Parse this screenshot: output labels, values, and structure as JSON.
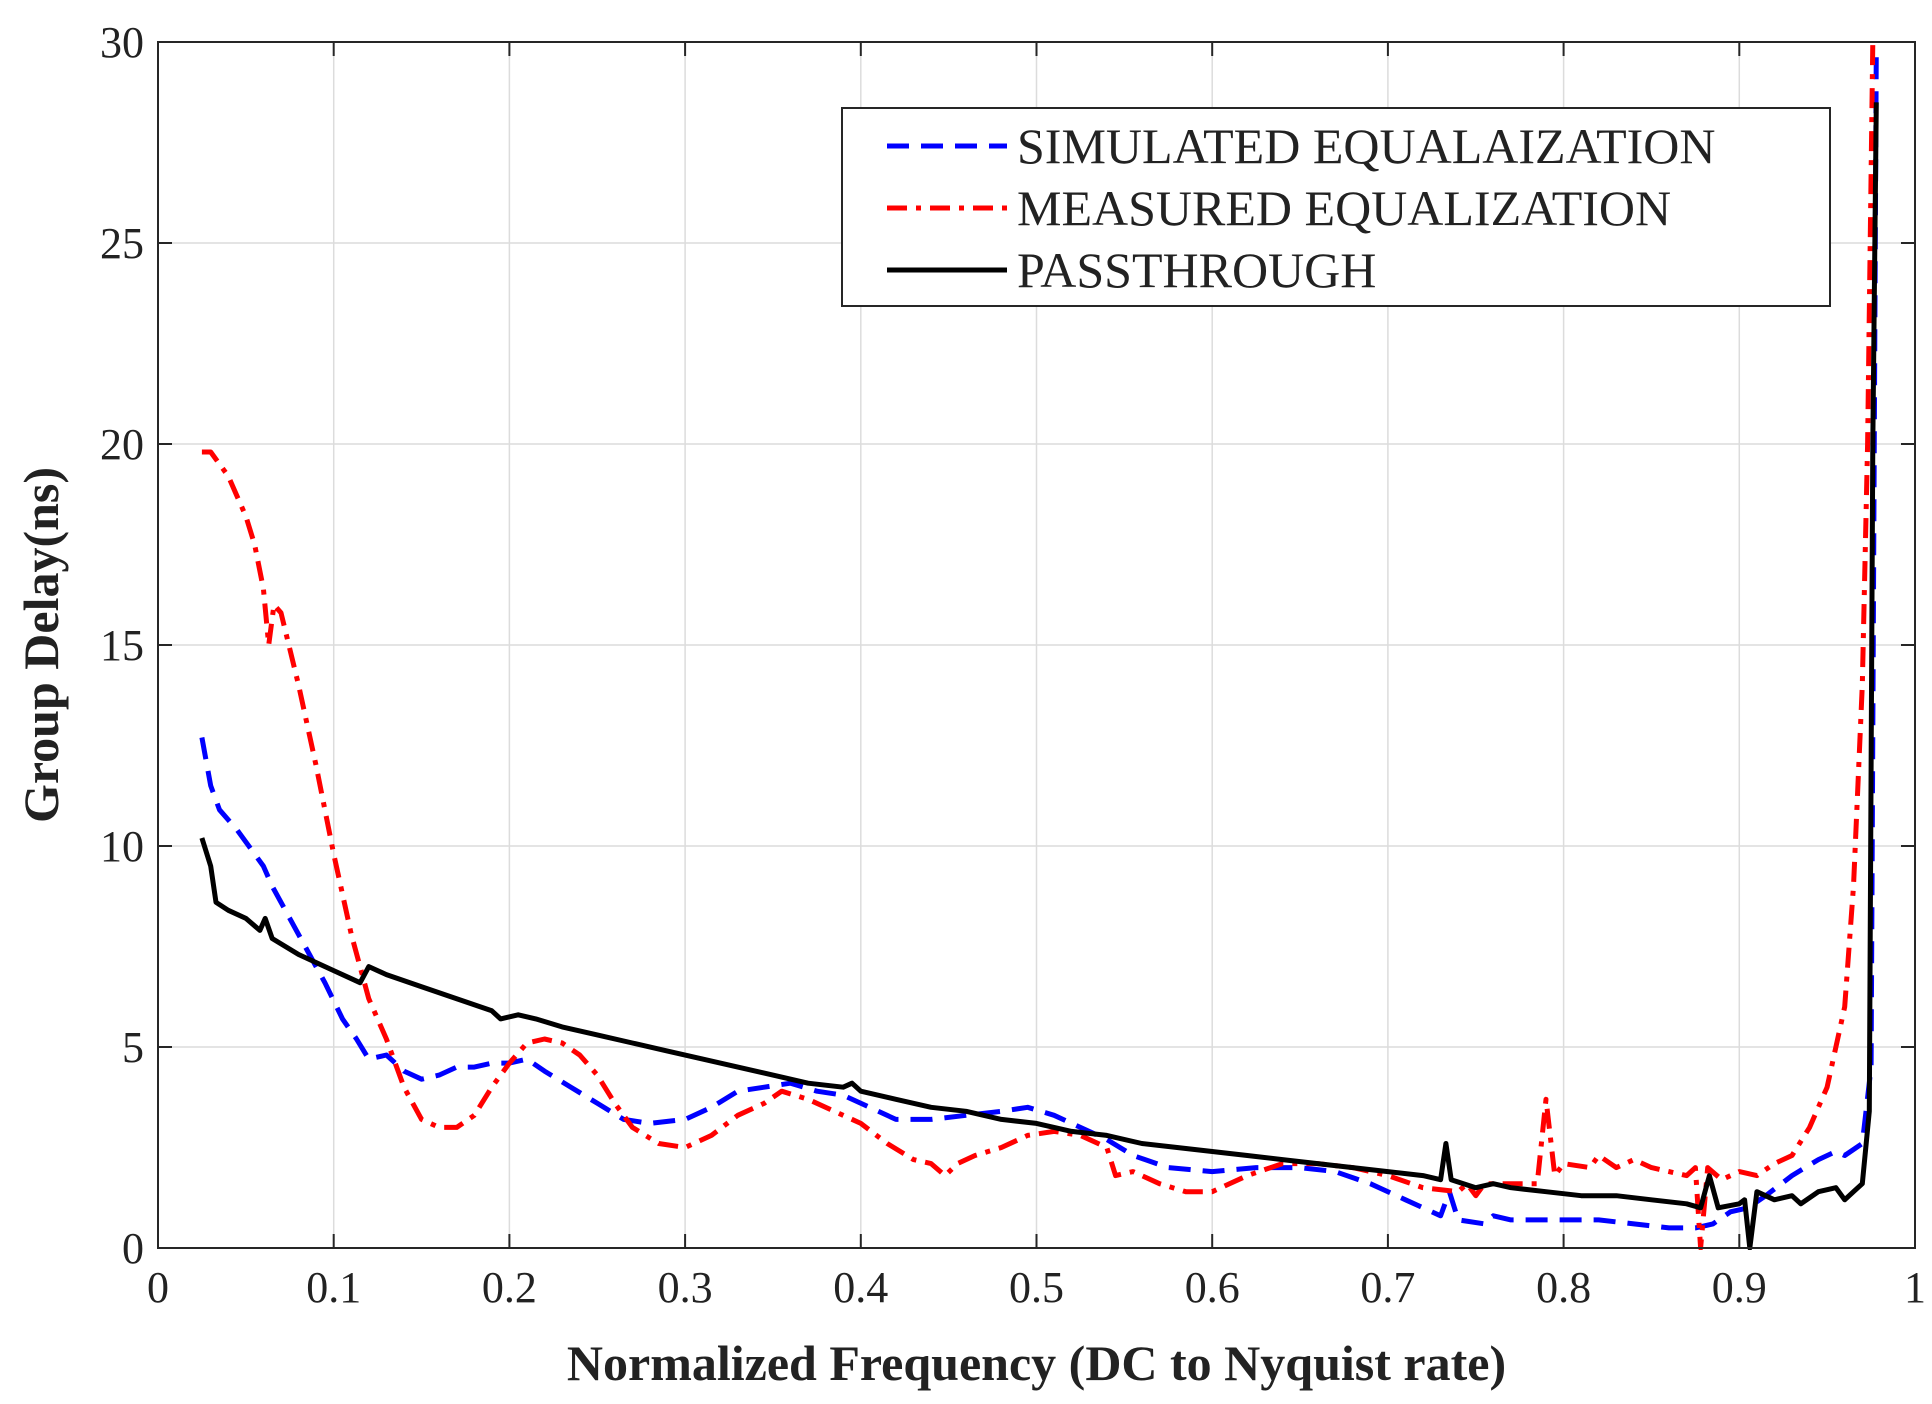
{
  "chart_data": {
    "type": "line",
    "title": "",
    "xlabel": "Normalized Frequency (DC to Nyquist rate)",
    "ylabel": "Group Delay(ns)",
    "xlim": [
      0,
      1
    ],
    "ylim": [
      0,
      30
    ],
    "grid": true,
    "legend_position": "top-right",
    "x_ticks": [
      0,
      0.1,
      0.2,
      0.3,
      0.4,
      0.5,
      0.6,
      0.7,
      0.8,
      0.9,
      1
    ],
    "x_tick_labels": [
      "0",
      "0.1",
      "0.2",
      "0.3",
      "0.4",
      "0.5",
      "0.6",
      "0.7",
      "0.8",
      "0.9",
      "1"
    ],
    "y_ticks": [
      0,
      5,
      10,
      15,
      20,
      25,
      30
    ],
    "y_tick_labels": [
      "0",
      "5",
      "10",
      "15",
      "20",
      "25",
      "30"
    ],
    "series": [
      {
        "name": "SIMULATED EQUALAIZATION",
        "color": "#0000ff",
        "style": "dashed",
        "points": [
          [
            0.025,
            12.7
          ],
          [
            0.03,
            11.5
          ],
          [
            0.035,
            10.9
          ],
          [
            0.045,
            10.4
          ],
          [
            0.055,
            9.8
          ],
          [
            0.06,
            9.5
          ],
          [
            0.065,
            9.0
          ],
          [
            0.075,
            8.2
          ],
          [
            0.085,
            7.4
          ],
          [
            0.095,
            6.6
          ],
          [
            0.105,
            5.7
          ],
          [
            0.113,
            5.2
          ],
          [
            0.12,
            4.7
          ],
          [
            0.13,
            4.8
          ],
          [
            0.14,
            4.4
          ],
          [
            0.15,
            4.2
          ],
          [
            0.16,
            4.3
          ],
          [
            0.17,
            4.5
          ],
          [
            0.18,
            4.5
          ],
          [
            0.19,
            4.6
          ],
          [
            0.2,
            4.6
          ],
          [
            0.21,
            4.7
          ],
          [
            0.22,
            4.4
          ],
          [
            0.235,
            4.0
          ],
          [
            0.25,
            3.6
          ],
          [
            0.265,
            3.2
          ],
          [
            0.28,
            3.1
          ],
          [
            0.3,
            3.2
          ],
          [
            0.315,
            3.5
          ],
          [
            0.33,
            3.9
          ],
          [
            0.345,
            4.0
          ],
          [
            0.36,
            4.1
          ],
          [
            0.375,
            3.9
          ],
          [
            0.39,
            3.8
          ],
          [
            0.405,
            3.5
          ],
          [
            0.42,
            3.2
          ],
          [
            0.44,
            3.2
          ],
          [
            0.46,
            3.3
          ],
          [
            0.48,
            3.4
          ],
          [
            0.495,
            3.5
          ],
          [
            0.51,
            3.3
          ],
          [
            0.525,
            3.0
          ],
          [
            0.54,
            2.7
          ],
          [
            0.555,
            2.3
          ],
          [
            0.575,
            2.0
          ],
          [
            0.6,
            1.9
          ],
          [
            0.625,
            2.0
          ],
          [
            0.65,
            2.0
          ],
          [
            0.67,
            1.9
          ],
          [
            0.69,
            1.6
          ],
          [
            0.71,
            1.2
          ],
          [
            0.725,
            0.9
          ],
          [
            0.73,
            0.8
          ],
          [
            0.735,
            1.4
          ],
          [
            0.74,
            0.7
          ],
          [
            0.755,
            0.6
          ],
          [
            0.76,
            0.8
          ],
          [
            0.77,
            0.7
          ],
          [
            0.78,
            0.7
          ],
          [
            0.8,
            0.7
          ],
          [
            0.82,
            0.7
          ],
          [
            0.84,
            0.6
          ],
          [
            0.86,
            0.5
          ],
          [
            0.875,
            0.5
          ],
          [
            0.885,
            0.6
          ],
          [
            0.895,
            0.9
          ],
          [
            0.905,
            1.0
          ],
          [
            0.915,
            1.3
          ],
          [
            0.93,
            1.8
          ],
          [
            0.945,
            2.2
          ],
          [
            0.955,
            2.4
          ],
          [
            0.96,
            2.3
          ],
          [
            0.97,
            2.6
          ],
          [
            0.975,
            4.5
          ],
          [
            0.978,
            29.9
          ]
        ]
      },
      {
        "name": "MEASURED EQUALIZATION",
        "color": "#ff0000",
        "style": "dashdot",
        "points": [
          [
            0.025,
            19.8
          ],
          [
            0.03,
            19.8
          ],
          [
            0.04,
            19.2
          ],
          [
            0.05,
            18.2
          ],
          [
            0.055,
            17.5
          ],
          [
            0.06,
            16.4
          ],
          [
            0.063,
            15.0
          ],
          [
            0.066,
            16.0
          ],
          [
            0.07,
            15.8
          ],
          [
            0.08,
            14.0
          ],
          [
            0.09,
            12.0
          ],
          [
            0.1,
            9.8
          ],
          [
            0.11,
            7.8
          ],
          [
            0.12,
            6.2
          ],
          [
            0.13,
            5.2
          ],
          [
            0.14,
            4.0
          ],
          [
            0.15,
            3.2
          ],
          [
            0.16,
            3.0
          ],
          [
            0.17,
            3.0
          ],
          [
            0.18,
            3.3
          ],
          [
            0.19,
            4.0
          ],
          [
            0.2,
            4.6
          ],
          [
            0.21,
            5.1
          ],
          [
            0.22,
            5.2
          ],
          [
            0.23,
            5.1
          ],
          [
            0.24,
            4.8
          ],
          [
            0.25,
            4.3
          ],
          [
            0.26,
            3.6
          ],
          [
            0.27,
            3.0
          ],
          [
            0.285,
            2.6
          ],
          [
            0.3,
            2.5
          ],
          [
            0.315,
            2.8
          ],
          [
            0.33,
            3.3
          ],
          [
            0.345,
            3.6
          ],
          [
            0.355,
            3.9
          ],
          [
            0.37,
            3.7
          ],
          [
            0.385,
            3.4
          ],
          [
            0.4,
            3.1
          ],
          [
            0.415,
            2.6
          ],
          [
            0.43,
            2.2
          ],
          [
            0.44,
            2.1
          ],
          [
            0.448,
            1.8
          ],
          [
            0.455,
            2.1
          ],
          [
            0.465,
            2.3
          ],
          [
            0.48,
            2.5
          ],
          [
            0.495,
            2.8
          ],
          [
            0.51,
            2.9
          ],
          [
            0.525,
            2.8
          ],
          [
            0.54,
            2.5
          ],
          [
            0.545,
            1.8
          ],
          [
            0.555,
            1.9
          ],
          [
            0.57,
            1.6
          ],
          [
            0.585,
            1.4
          ],
          [
            0.6,
            1.4
          ],
          [
            0.62,
            1.8
          ],
          [
            0.64,
            2.1
          ],
          [
            0.66,
            2.1
          ],
          [
            0.68,
            2.0
          ],
          [
            0.7,
            1.8
          ],
          [
            0.72,
            1.5
          ],
          [
            0.74,
            1.4
          ],
          [
            0.745,
            1.6
          ],
          [
            0.75,
            1.3
          ],
          [
            0.755,
            1.6
          ],
          [
            0.77,
            1.6
          ],
          [
            0.785,
            1.6
          ],
          [
            0.79,
            3.7
          ],
          [
            0.795,
            1.8
          ],
          [
            0.8,
            2.1
          ],
          [
            0.815,
            2.0
          ],
          [
            0.82,
            2.3
          ],
          [
            0.83,
            2.0
          ],
          [
            0.84,
            2.2
          ],
          [
            0.85,
            2.0
          ],
          [
            0.86,
            1.9
          ],
          [
            0.87,
            1.8
          ],
          [
            0.875,
            2.0
          ],
          [
            0.878,
            0.0
          ],
          [
            0.882,
            2.0
          ],
          [
            0.89,
            1.7
          ],
          [
            0.9,
            1.9
          ],
          [
            0.91,
            1.8
          ],
          [
            0.92,
            2.1
          ],
          [
            0.93,
            2.3
          ],
          [
            0.94,
            3.0
          ],
          [
            0.95,
            4.0
          ],
          [
            0.96,
            6.0
          ],
          [
            0.965,
            9.0
          ],
          [
            0.97,
            14.0
          ],
          [
            0.973,
            20.0
          ],
          [
            0.976,
            30.0
          ]
        ]
      },
      {
        "name": "PASSTHROUGH",
        "color": "#000000",
        "style": "solid",
        "points": [
          [
            0.025,
            10.2
          ],
          [
            0.03,
            9.5
          ],
          [
            0.033,
            8.6
          ],
          [
            0.04,
            8.4
          ],
          [
            0.05,
            8.2
          ],
          [
            0.058,
            7.9
          ],
          [
            0.061,
            8.2
          ],
          [
            0.065,
            7.7
          ],
          [
            0.08,
            7.3
          ],
          [
            0.1,
            6.9
          ],
          [
            0.115,
            6.6
          ],
          [
            0.12,
            7.0
          ],
          [
            0.13,
            6.8
          ],
          [
            0.15,
            6.5
          ],
          [
            0.17,
            6.2
          ],
          [
            0.19,
            5.9
          ],
          [
            0.195,
            5.7
          ],
          [
            0.205,
            5.8
          ],
          [
            0.215,
            5.7
          ],
          [
            0.23,
            5.5
          ],
          [
            0.25,
            5.3
          ],
          [
            0.27,
            5.1
          ],
          [
            0.29,
            4.9
          ],
          [
            0.31,
            4.7
          ],
          [
            0.33,
            4.5
          ],
          [
            0.35,
            4.3
          ],
          [
            0.37,
            4.1
          ],
          [
            0.39,
            4.0
          ],
          [
            0.395,
            4.1
          ],
          [
            0.4,
            3.9
          ],
          [
            0.42,
            3.7
          ],
          [
            0.44,
            3.5
          ],
          [
            0.46,
            3.4
          ],
          [
            0.48,
            3.2
          ],
          [
            0.5,
            3.1
          ],
          [
            0.52,
            2.9
          ],
          [
            0.54,
            2.8
          ],
          [
            0.56,
            2.6
          ],
          [
            0.58,
            2.5
          ],
          [
            0.6,
            2.4
          ],
          [
            0.62,
            2.3
          ],
          [
            0.64,
            2.2
          ],
          [
            0.66,
            2.1
          ],
          [
            0.68,
            2.0
          ],
          [
            0.7,
            1.9
          ],
          [
            0.72,
            1.8
          ],
          [
            0.73,
            1.7
          ],
          [
            0.733,
            2.6
          ],
          [
            0.736,
            1.7
          ],
          [
            0.75,
            1.5
          ],
          [
            0.76,
            1.6
          ],
          [
            0.77,
            1.5
          ],
          [
            0.79,
            1.4
          ],
          [
            0.81,
            1.3
          ],
          [
            0.83,
            1.3
          ],
          [
            0.85,
            1.2
          ],
          [
            0.87,
            1.1
          ],
          [
            0.878,
            1.0
          ],
          [
            0.883,
            1.8
          ],
          [
            0.888,
            1.0
          ],
          [
            0.9,
            1.1
          ],
          [
            0.903,
            1.2
          ],
          [
            0.906,
            0.0
          ],
          [
            0.91,
            1.4
          ],
          [
            0.92,
            1.2
          ],
          [
            0.93,
            1.3
          ],
          [
            0.935,
            1.1
          ],
          [
            0.945,
            1.4
          ],
          [
            0.955,
            1.5
          ],
          [
            0.96,
            1.2
          ],
          [
            0.965,
            1.4
          ],
          [
            0.97,
            1.6
          ],
          [
            0.974,
            3.4
          ],
          [
            0.976,
            20.0
          ],
          [
            0.978,
            28.5
          ]
        ]
      }
    ]
  }
}
